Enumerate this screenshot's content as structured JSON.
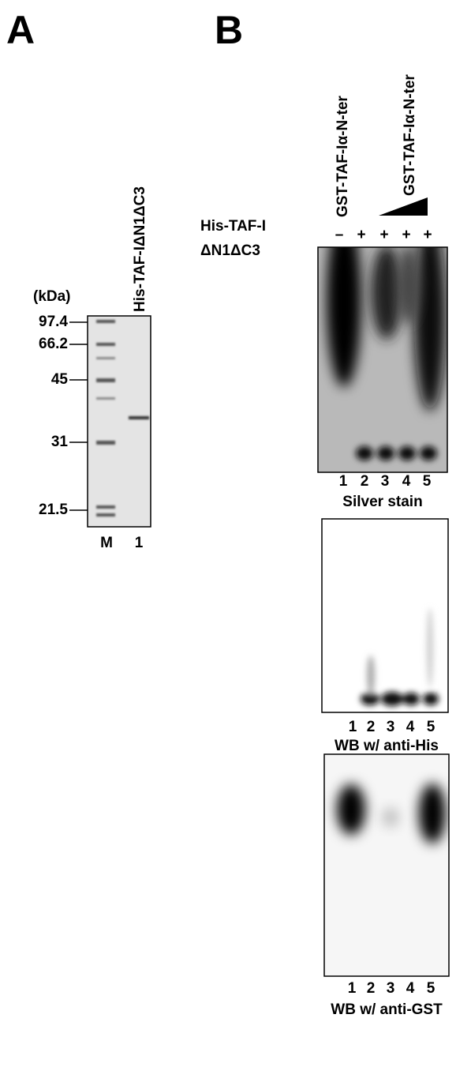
{
  "panel_a": {
    "letter": "A",
    "sample_label": "His-TAF-IΔN1ΔC3",
    "unit": "(kDa)",
    "markers": [
      "97.4",
      "66.2",
      "45",
      "31",
      "21.5"
    ],
    "lanes": [
      "M",
      "1"
    ]
  },
  "panel_b": {
    "letter": "B",
    "header_left": "GST-TAF-Iα-N-ter",
    "header_right": "GST-TAF-Iα-N-ter",
    "row_label": [
      "His-TAF-I",
      "ΔN1ΔC3"
    ],
    "signs": [
      "–",
      "+",
      "+",
      "+",
      "+"
    ],
    "blots": [
      {
        "lanes": [
          "1",
          "2",
          "3",
          "4",
          "5"
        ],
        "caption": "Silver stain"
      },
      {
        "lanes": [
          "1",
          "2",
          "3",
          "4",
          "5"
        ],
        "caption": "WB w/ anti-His"
      },
      {
        "lanes": [
          "1",
          "2",
          "3",
          "4",
          "5"
        ],
        "caption": "WB w/ anti-GST"
      }
    ]
  }
}
